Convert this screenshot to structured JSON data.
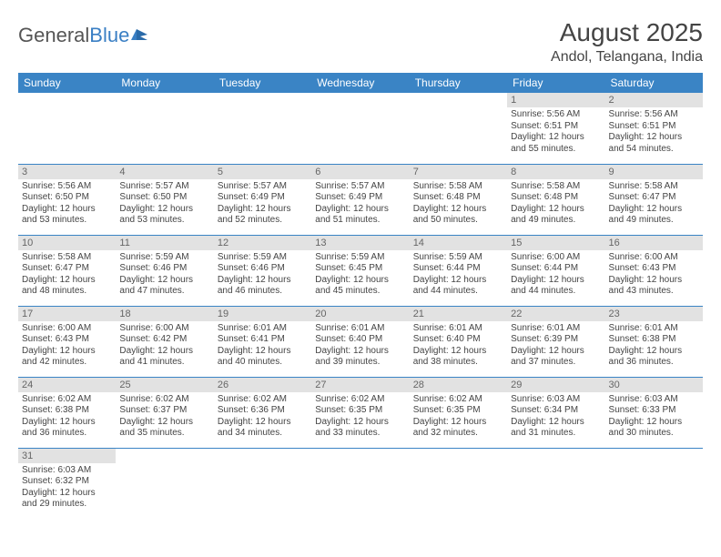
{
  "logo": {
    "text1": "General",
    "text2": "Blue"
  },
  "title": "August 2025",
  "location": "Andol, Telangana, India",
  "colors": {
    "header_bg": "#3a84c5",
    "header_text": "#ffffff",
    "daynum_bg": "#e2e2e2",
    "border": "#3a84c5",
    "text": "#444444"
  },
  "weekdays": [
    "Sunday",
    "Monday",
    "Tuesday",
    "Wednesday",
    "Thursday",
    "Friday",
    "Saturday"
  ],
  "weeks": [
    [
      null,
      null,
      null,
      null,
      null,
      {
        "n": "1",
        "sr": "Sunrise: 5:56 AM",
        "ss": "Sunset: 6:51 PM",
        "dl": "Daylight: 12 hours and 55 minutes."
      },
      {
        "n": "2",
        "sr": "Sunrise: 5:56 AM",
        "ss": "Sunset: 6:51 PM",
        "dl": "Daylight: 12 hours and 54 minutes."
      }
    ],
    [
      {
        "n": "3",
        "sr": "Sunrise: 5:56 AM",
        "ss": "Sunset: 6:50 PM",
        "dl": "Daylight: 12 hours and 53 minutes."
      },
      {
        "n": "4",
        "sr": "Sunrise: 5:57 AM",
        "ss": "Sunset: 6:50 PM",
        "dl": "Daylight: 12 hours and 53 minutes."
      },
      {
        "n": "5",
        "sr": "Sunrise: 5:57 AM",
        "ss": "Sunset: 6:49 PM",
        "dl": "Daylight: 12 hours and 52 minutes."
      },
      {
        "n": "6",
        "sr": "Sunrise: 5:57 AM",
        "ss": "Sunset: 6:49 PM",
        "dl": "Daylight: 12 hours and 51 minutes."
      },
      {
        "n": "7",
        "sr": "Sunrise: 5:58 AM",
        "ss": "Sunset: 6:48 PM",
        "dl": "Daylight: 12 hours and 50 minutes."
      },
      {
        "n": "8",
        "sr": "Sunrise: 5:58 AM",
        "ss": "Sunset: 6:48 PM",
        "dl": "Daylight: 12 hours and 49 minutes."
      },
      {
        "n": "9",
        "sr": "Sunrise: 5:58 AM",
        "ss": "Sunset: 6:47 PM",
        "dl": "Daylight: 12 hours and 49 minutes."
      }
    ],
    [
      {
        "n": "10",
        "sr": "Sunrise: 5:58 AM",
        "ss": "Sunset: 6:47 PM",
        "dl": "Daylight: 12 hours and 48 minutes."
      },
      {
        "n": "11",
        "sr": "Sunrise: 5:59 AM",
        "ss": "Sunset: 6:46 PM",
        "dl": "Daylight: 12 hours and 47 minutes."
      },
      {
        "n": "12",
        "sr": "Sunrise: 5:59 AM",
        "ss": "Sunset: 6:46 PM",
        "dl": "Daylight: 12 hours and 46 minutes."
      },
      {
        "n": "13",
        "sr": "Sunrise: 5:59 AM",
        "ss": "Sunset: 6:45 PM",
        "dl": "Daylight: 12 hours and 45 minutes."
      },
      {
        "n": "14",
        "sr": "Sunrise: 5:59 AM",
        "ss": "Sunset: 6:44 PM",
        "dl": "Daylight: 12 hours and 44 minutes."
      },
      {
        "n": "15",
        "sr": "Sunrise: 6:00 AM",
        "ss": "Sunset: 6:44 PM",
        "dl": "Daylight: 12 hours and 44 minutes."
      },
      {
        "n": "16",
        "sr": "Sunrise: 6:00 AM",
        "ss": "Sunset: 6:43 PM",
        "dl": "Daylight: 12 hours and 43 minutes."
      }
    ],
    [
      {
        "n": "17",
        "sr": "Sunrise: 6:00 AM",
        "ss": "Sunset: 6:43 PM",
        "dl": "Daylight: 12 hours and 42 minutes."
      },
      {
        "n": "18",
        "sr": "Sunrise: 6:00 AM",
        "ss": "Sunset: 6:42 PM",
        "dl": "Daylight: 12 hours and 41 minutes."
      },
      {
        "n": "19",
        "sr": "Sunrise: 6:01 AM",
        "ss": "Sunset: 6:41 PM",
        "dl": "Daylight: 12 hours and 40 minutes."
      },
      {
        "n": "20",
        "sr": "Sunrise: 6:01 AM",
        "ss": "Sunset: 6:40 PM",
        "dl": "Daylight: 12 hours and 39 minutes."
      },
      {
        "n": "21",
        "sr": "Sunrise: 6:01 AM",
        "ss": "Sunset: 6:40 PM",
        "dl": "Daylight: 12 hours and 38 minutes."
      },
      {
        "n": "22",
        "sr": "Sunrise: 6:01 AM",
        "ss": "Sunset: 6:39 PM",
        "dl": "Daylight: 12 hours and 37 minutes."
      },
      {
        "n": "23",
        "sr": "Sunrise: 6:01 AM",
        "ss": "Sunset: 6:38 PM",
        "dl": "Daylight: 12 hours and 36 minutes."
      }
    ],
    [
      {
        "n": "24",
        "sr": "Sunrise: 6:02 AM",
        "ss": "Sunset: 6:38 PM",
        "dl": "Daylight: 12 hours and 36 minutes."
      },
      {
        "n": "25",
        "sr": "Sunrise: 6:02 AM",
        "ss": "Sunset: 6:37 PM",
        "dl": "Daylight: 12 hours and 35 minutes."
      },
      {
        "n": "26",
        "sr": "Sunrise: 6:02 AM",
        "ss": "Sunset: 6:36 PM",
        "dl": "Daylight: 12 hours and 34 minutes."
      },
      {
        "n": "27",
        "sr": "Sunrise: 6:02 AM",
        "ss": "Sunset: 6:35 PM",
        "dl": "Daylight: 12 hours and 33 minutes."
      },
      {
        "n": "28",
        "sr": "Sunrise: 6:02 AM",
        "ss": "Sunset: 6:35 PM",
        "dl": "Daylight: 12 hours and 32 minutes."
      },
      {
        "n": "29",
        "sr": "Sunrise: 6:03 AM",
        "ss": "Sunset: 6:34 PM",
        "dl": "Daylight: 12 hours and 31 minutes."
      },
      {
        "n": "30",
        "sr": "Sunrise: 6:03 AM",
        "ss": "Sunset: 6:33 PM",
        "dl": "Daylight: 12 hours and 30 minutes."
      }
    ],
    [
      {
        "n": "31",
        "sr": "Sunrise: 6:03 AM",
        "ss": "Sunset: 6:32 PM",
        "dl": "Daylight: 12 hours and 29 minutes."
      },
      null,
      null,
      null,
      null,
      null,
      null
    ]
  ]
}
